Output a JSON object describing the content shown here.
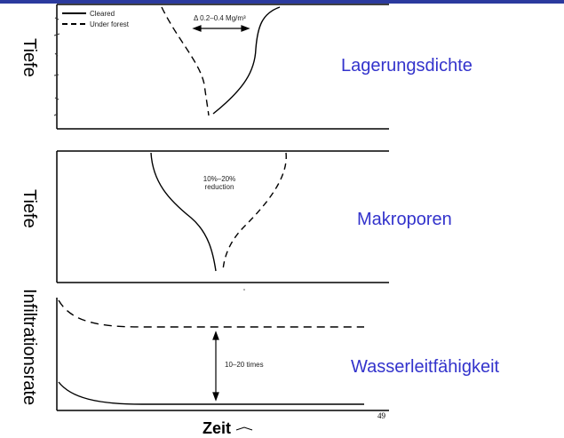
{
  "legend": {
    "cleared": "Cleared",
    "under_forest": "Under forest"
  },
  "panel1": {
    "title": "Lagerungsdichte",
    "axis": "Tiefe",
    "annotation": "Δ 0.2–0.4 Mg/m³"
  },
  "panel2": {
    "title": "Makroporen",
    "axis": "Tiefe",
    "annotation_line1": "10%–20%",
    "annotation_line2": "reduction"
  },
  "panel3": {
    "title": "Wasserleitfähigkeit",
    "axis": "Infiltrationsrate",
    "annotation": "10–20 times"
  },
  "x_axis_label": "Zeit",
  "page_number": "49",
  "colors": {
    "accent": "#3333cc",
    "bar": "#2b3a9e"
  }
}
